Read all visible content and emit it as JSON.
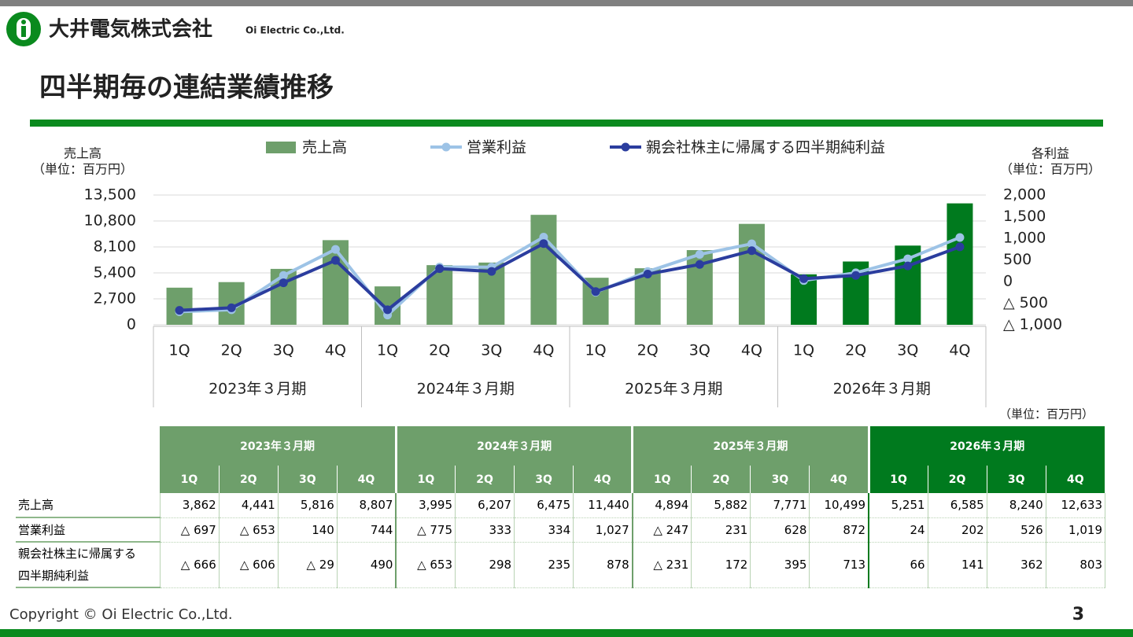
{
  "header": {
    "company": "大井電気株式会社",
    "company_en": "Oi Electric Co.,Ltd.",
    "title": "四半期毎の連結業績推移"
  },
  "chart_data": {
    "type": "bar",
    "y_label": "売上高",
    "y_unit": "（単位：百万円）",
    "y2_label": "各利益",
    "y2_unit": "（単位：百万円）",
    "categories": [
      "1Q",
      "2Q",
      "3Q",
      "4Q",
      "1Q",
      "2Q",
      "3Q",
      "4Q",
      "1Q",
      "2Q",
      "3Q",
      "4Q",
      "1Q",
      "2Q",
      "3Q",
      "4Q"
    ],
    "groups": [
      "2023年３月期",
      "2024年３月期",
      "2025年３月期",
      "2026年３月期"
    ],
    "group_colors": [
      "#6e9f6b",
      "#6e9f6b",
      "#6e9f6b",
      "#007a1e"
    ],
    "series": [
      {
        "name": "売上高",
        "type": "bar",
        "values": [
          3862,
          4441,
          5816,
          8807,
          3995,
          6207,
          6475,
          11440,
          4894,
          5882,
          7771,
          10499,
          5251,
          6585,
          8240,
          12633
        ],
        "value_labels": [
          "3,862",
          "4,441",
          "5,816",
          "8,807",
          "3,995",
          "6,207",
          "6,475",
          "11,440",
          "4,894",
          "5,882",
          "7,771",
          "10,499",
          "5,251",
          "6,585",
          "8,240",
          "12,633"
        ]
      },
      {
        "name": "営業利益",
        "type": "line",
        "axis": "y2",
        "color": "#9dc3e6",
        "values": [
          -697,
          -653,
          140,
          744,
          -775,
          333,
          334,
          1027,
          -247,
          231,
          628,
          872,
          24,
          202,
          526,
          1019
        ],
        "value_labels": [
          "△ 697",
          "△ 653",
          "140",
          "744",
          "△ 775",
          "333",
          "334",
          "1,027",
          "△ 247",
          "231",
          "628",
          "872",
          "24",
          "202",
          "526",
          "1,019"
        ]
      },
      {
        "name": "親会社株主に帰属する四半期純利益",
        "type": "line",
        "axis": "y2",
        "color": "#2b3d9e",
        "values": [
          -666,
          -606,
          -29,
          490,
          -653,
          298,
          235,
          878,
          -231,
          172,
          395,
          713,
          66,
          141,
          362,
          803
        ],
        "value_labels": [
          "△ 666",
          "△ 606",
          "△ 29",
          "490",
          "△ 653",
          "298",
          "235",
          "878",
          "△ 231",
          "172",
          "395",
          "713",
          "66",
          "141",
          "362",
          "803"
        ]
      }
    ],
    "ylim": [
      0,
      13500
    ],
    "yticks": [
      0,
      {
        "value": 2700,
        "label": "2,700"
      },
      {
        "value": 5400,
        "label": "5,400"
      },
      {
        "value": 8100,
        "label": "8,100"
      },
      {
        "value": 10800,
        "label": "10,800"
      },
      {
        "value": 13500,
        "label": "13,500"
      }
    ],
    "y2lim": [
      -1000,
      2000
    ],
    "y2ticks": [
      {
        "value": -1000,
        "label": "△ 1,000"
      },
      {
        "value": -500,
        "label": "△ 500"
      },
      0,
      500,
      {
        "value": 1000,
        "label": "1,000"
      },
      {
        "value": 1500,
        "label": "1,500"
      },
      {
        "value": 2000,
        "label": "2,000"
      }
    ],
    "grid": true,
    "legend": "top"
  },
  "table": {
    "unit": "（単位：百万円）"
  },
  "footer": {
    "copyright": "Copyright © Oi Electric Co.,Ltd.",
    "page": "3"
  }
}
